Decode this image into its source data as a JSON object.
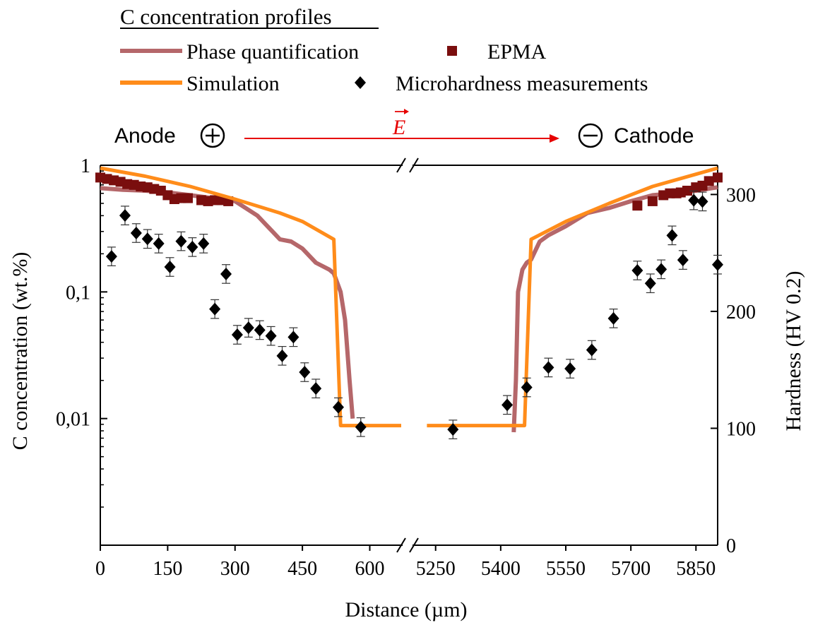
{
  "chart_data": {
    "type": "scatter",
    "title": "C concentration profiles",
    "xlabel": "Distance (µm)",
    "ylabel_left": "C concentration (wt.%)",
    "ylabel_right": "Hardness (HV 0.2)",
    "y_left_scale": "log",
    "y_left_range": [
      0.001,
      1
    ],
    "y_left_ticks": [
      {
        "value": 1,
        "label": "1"
      },
      {
        "value": 0.1,
        "label": "0,1"
      },
      {
        "value": 0.01,
        "label": "0,01"
      }
    ],
    "y_right_range": [
      0,
      325
    ],
    "y_right_ticks": [
      {
        "value": 0,
        "label": "0"
      },
      {
        "value": 100,
        "label": "100"
      },
      {
        "value": 200,
        "label": "200"
      },
      {
        "value": 300,
        "label": "300"
      }
    ],
    "x_broken": true,
    "x_segments": [
      {
        "range": [
          0,
          670
        ]
      },
      {
        "range": [
          5200,
          5900
        ]
      }
    ],
    "x_ticks": [
      {
        "value": 0,
        "label": "0"
      },
      {
        "value": 150,
        "label": "150"
      },
      {
        "value": 300,
        "label": "300"
      },
      {
        "value": 450,
        "label": "450"
      },
      {
        "value": 600,
        "label": "600"
      },
      {
        "value": 5250,
        "label": "5250"
      },
      {
        "value": 5400,
        "label": "5400"
      },
      {
        "value": 5550,
        "label": "5550"
      },
      {
        "value": 5700,
        "label": "5700"
      },
      {
        "value": 5850,
        "label": "5850"
      }
    ],
    "legend": [
      {
        "name": "Phase quantification",
        "marker": "line",
        "color": "#b5676a"
      },
      {
        "name": "EPMA",
        "marker": "square",
        "color": "#7a0e0e"
      },
      {
        "name": "Simulation",
        "marker": "line",
        "color": "#ff8c1a"
      },
      {
        "name": "Microhardness measurements",
        "marker": "diamond",
        "color": "#000000"
      }
    ],
    "annotations": {
      "anode": "Anode",
      "cathode": "Cathode",
      "field": "E"
    },
    "series": [
      {
        "name": "Simulation",
        "axis": "left",
        "type": "line",
        "color": "#ff8c1a",
        "segments": [
          [
            [
              0,
              0.95
            ],
            [
              100,
              0.82
            ],
            [
              200,
              0.68
            ],
            [
              300,
              0.54
            ],
            [
              400,
              0.42
            ],
            [
              450,
              0.36
            ],
            [
              520,
              0.26
            ],
            [
              535,
              0.0088
            ],
            [
              670,
              0.0088
            ]
          ],
          [
            [
              5230,
              0.0088
            ],
            [
              5455,
              0.0088
            ],
            [
              5470,
              0.26
            ],
            [
              5550,
              0.36
            ],
            [
              5650,
              0.5
            ],
            [
              5750,
              0.68
            ],
            [
              5850,
              0.85
            ],
            [
              5900,
              0.95
            ]
          ]
        ]
      },
      {
        "name": "Phase quantification",
        "axis": "left",
        "type": "line",
        "color": "#b5676a",
        "segments": [
          [
            [
              0,
              0.66
            ],
            [
              50,
              0.64
            ],
            [
              100,
              0.63
            ],
            [
              150,
              0.61
            ],
            [
              200,
              0.58
            ],
            [
              250,
              0.55
            ],
            [
              300,
              0.52
            ],
            [
              350,
              0.4
            ],
            [
              400,
              0.26
            ],
            [
              425,
              0.25
            ],
            [
              450,
              0.22
            ],
            [
              480,
              0.17
            ],
            [
              510,
              0.15
            ],
            [
              520,
              0.14
            ],
            [
              535,
              0.1
            ],
            [
              545,
              0.06
            ],
            [
              555,
              0.02
            ],
            [
              562,
              0.01
            ]
          ],
          [
            [
              5430,
              0.0078
            ],
            [
              5435,
              0.02
            ],
            [
              5440,
              0.1
            ],
            [
              5450,
              0.15
            ],
            [
              5460,
              0.17
            ],
            [
              5470,
              0.18
            ],
            [
              5490,
              0.25
            ],
            [
              5510,
              0.28
            ],
            [
              5550,
              0.33
            ],
            [
              5600,
              0.42
            ],
            [
              5650,
              0.46
            ],
            [
              5700,
              0.52
            ],
            [
              5750,
              0.58
            ],
            [
              5800,
              0.6
            ],
            [
              5850,
              0.63
            ],
            [
              5900,
              0.67
            ]
          ]
        ]
      },
      {
        "name": "EPMA",
        "axis": "left",
        "type": "scatter",
        "color": "#7a0e0e",
        "points": [
          [
            0,
            0.8
          ],
          [
            15,
            0.78
          ],
          [
            30,
            0.76
          ],
          [
            45,
            0.74
          ],
          [
            60,
            0.71
          ],
          [
            75,
            0.7
          ],
          [
            90,
            0.68
          ],
          [
            105,
            0.67
          ],
          [
            120,
            0.65
          ],
          [
            135,
            0.63
          ],
          [
            150,
            0.58
          ],
          [
            165,
            0.54
          ],
          [
            180,
            0.55
          ],
          [
            195,
            0.55
          ],
          [
            225,
            0.53
          ],
          [
            240,
            0.52
          ],
          [
            255,
            0.53
          ],
          [
            270,
            0.53
          ],
          [
            285,
            0.52
          ],
          [
            5715,
            0.48
          ],
          [
            5750,
            0.52
          ],
          [
            5775,
            0.58
          ],
          [
            5790,
            0.6
          ],
          [
            5805,
            0.6
          ],
          [
            5815,
            0.61
          ],
          [
            5830,
            0.63
          ],
          [
            5850,
            0.67
          ],
          [
            5865,
            0.69
          ],
          [
            5880,
            0.75
          ],
          [
            5900,
            0.8
          ]
        ]
      },
      {
        "name": "Microhardness measurements",
        "axis": "right",
        "type": "scatter",
        "color": "#000000",
        "error": 8,
        "points": [
          [
            25,
            247
          ],
          [
            55,
            282
          ],
          [
            80,
            267
          ],
          [
            105,
            262
          ],
          [
            130,
            258
          ],
          [
            155,
            238
          ],
          [
            180,
            260
          ],
          [
            205,
            255
          ],
          [
            230,
            258
          ],
          [
            255,
            202
          ],
          [
            280,
            232
          ],
          [
            305,
            180
          ],
          [
            330,
            186
          ],
          [
            355,
            184
          ],
          [
            380,
            179
          ],
          [
            405,
            162
          ],
          [
            430,
            178
          ],
          [
            455,
            148
          ],
          [
            480,
            134
          ],
          [
            530,
            118
          ],
          [
            580,
            101
          ],
          [
            5290,
            99
          ],
          [
            5415,
            120
          ],
          [
            5460,
            135
          ],
          [
            5510,
            152
          ],
          [
            5560,
            151
          ],
          [
            5610,
            167
          ],
          [
            5660,
            194
          ],
          [
            5715,
            235
          ],
          [
            5745,
            224
          ],
          [
            5770,
            236
          ],
          [
            5795,
            265
          ],
          [
            5820,
            244
          ],
          [
            5845,
            295
          ],
          [
            5865,
            294
          ],
          [
            5900,
            240
          ]
        ]
      }
    ]
  }
}
